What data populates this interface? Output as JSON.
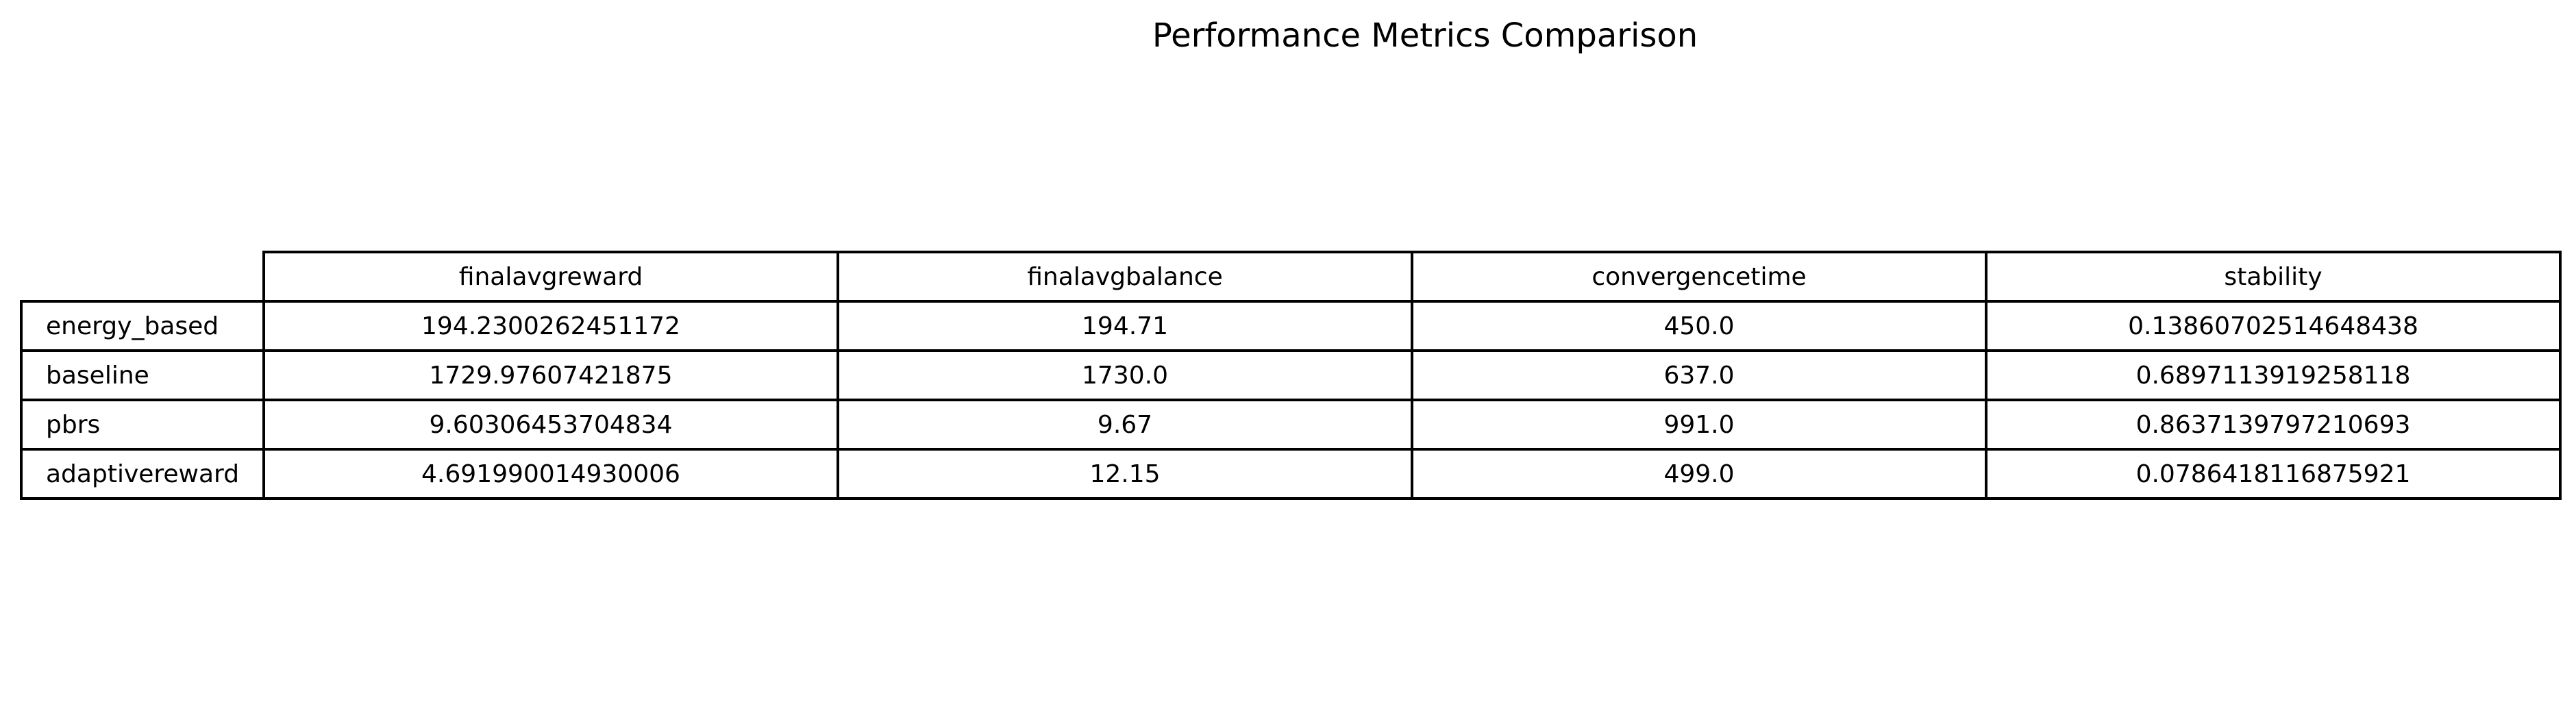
{
  "chart_data": {
    "type": "table",
    "title": "Performance Metrics Comparison",
    "columns": [
      "finalavgreward",
      "finalavgbalance",
      "convergencetime",
      "stability"
    ],
    "rows": [
      {
        "label": "energy_based",
        "cells": [
          "194.2300262451172",
          "194.71",
          "450.0",
          "0.13860702514648438"
        ]
      },
      {
        "label": "baseline",
        "cells": [
          "1729.97607421875",
          "1730.0",
          "637.0",
          "0.6897113919258118"
        ]
      },
      {
        "label": "pbrs",
        "cells": [
          "9.60306453704834",
          "9.67",
          "991.0",
          "0.8637139797210693"
        ]
      },
      {
        "label": "adaptivereward",
        "cells": [
          "4.691990014930006",
          "12.15",
          "499.0",
          "0.0786418116875921"
        ]
      }
    ]
  }
}
